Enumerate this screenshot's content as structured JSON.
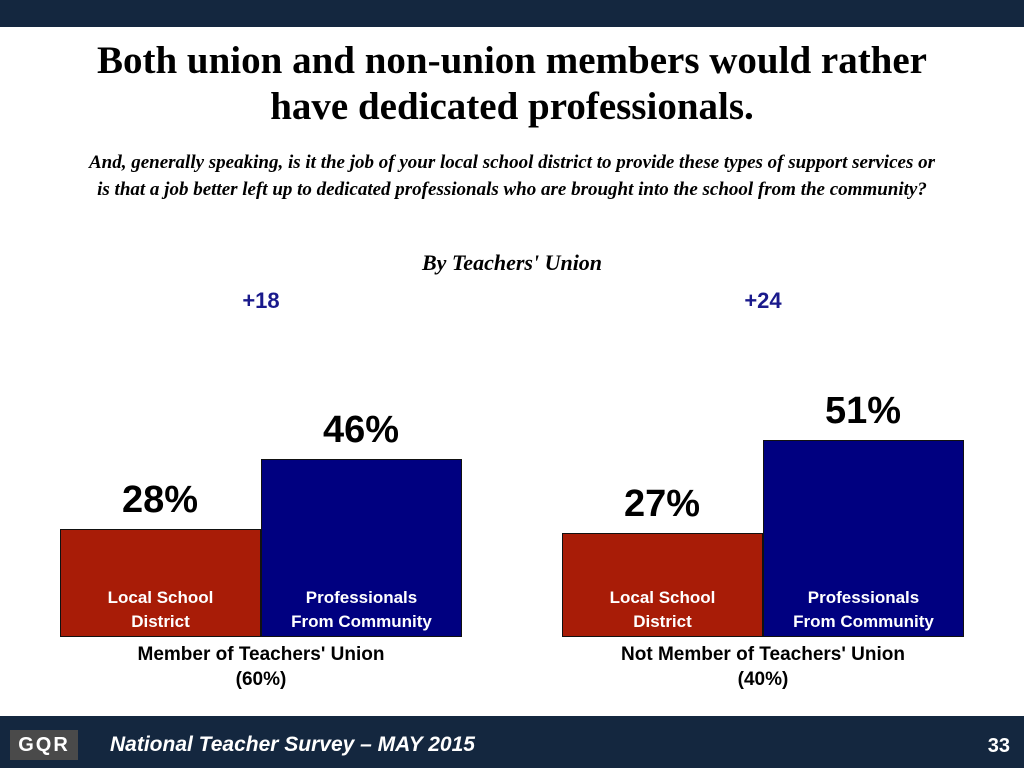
{
  "header": {
    "title": "Both union and non-union members would rather have dedicated professionals.",
    "question": "And, generally speaking, is it the job of your local school district to provide these types of support services or is that a job better left up to dedicated professionals who are brought into the school from the community?",
    "subtitle": "By Teachers' Union"
  },
  "chart_data": [
    {
      "type": "bar",
      "label": "Member of Teachers' Union",
      "share": "(60%)",
      "annotation": "+18",
      "categories": [
        "Local School District",
        "Professionals From Community"
      ],
      "values": [
        28,
        46
      ],
      "value_labels": [
        "28%",
        "46%"
      ],
      "colors": [
        "#a81c07",
        "#000080"
      ]
    },
    {
      "type": "bar",
      "label": "Not Member of Teachers' Union",
      "share": "(40%)",
      "annotation": "+24",
      "categories": [
        "Local School District",
        "Professionals From Community"
      ],
      "values": [
        27,
        51
      ],
      "value_labels": [
        "27%",
        "51%"
      ],
      "colors": [
        "#a81c07",
        "#000080"
      ]
    }
  ],
  "footer": {
    "logo": "GQR",
    "text": "National Teacher Survey – MAY 2015",
    "page": "33"
  }
}
